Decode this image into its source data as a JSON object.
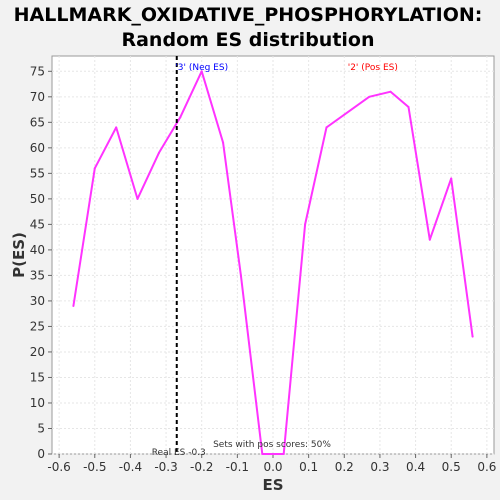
{
  "chart_data": {
    "type": "line",
    "title": "HALLMARK_OXIDATIVE_PHOSPHORYLATION:",
    "subtitle": "Random ES distribution",
    "xlabel": "ES",
    "ylabel": "P(ES)",
    "xlim": [
      -0.62,
      0.62
    ],
    "ylim": [
      0,
      78
    ],
    "x_ticks": [
      -0.6,
      -0.5,
      -0.4,
      -0.3,
      -0.2,
      -0.1,
      0.0,
      0.1,
      0.2,
      0.3,
      0.4,
      0.5,
      0.6
    ],
    "x_tick_labels": [
      "-0.6",
      "-0.5",
      "-0.4",
      "-0.3",
      "-0.2",
      "-0.1",
      "0.0",
      "0.1",
      "0.2",
      "0.3",
      "0.4",
      "0.5",
      "0.6"
    ],
    "y_ticks": [
      0,
      5,
      10,
      15,
      20,
      25,
      30,
      35,
      40,
      45,
      50,
      55,
      60,
      65,
      70,
      75
    ],
    "y_tick_labels": [
      "0",
      "5",
      "10",
      "15",
      "20",
      "25",
      "30",
      "35",
      "40",
      "45",
      "50",
      "55",
      "60",
      "65",
      "70",
      "75"
    ],
    "grid": true,
    "series": [
      {
        "color": "#ff33ff",
        "x": [
          -0.56,
          -0.5,
          -0.44,
          -0.38,
          -0.32,
          -0.26,
          -0.2,
          -0.14,
          -0.09,
          -0.03,
          0.03,
          0.09,
          0.15,
          0.27,
          0.33,
          0.38,
          0.44,
          0.5,
          0.56
        ],
        "y": [
          29,
          56,
          64,
          50,
          59,
          66,
          75,
          61,
          35,
          0,
          0,
          45,
          64,
          70,
          71,
          68,
          42,
          54,
          23
        ]
      }
    ],
    "real_es": {
      "value": -0.27,
      "label": "Real ES -0.3",
      "line_color": "#000000"
    },
    "annotations": {
      "neg_label": "'3' (Neg ES)",
      "neg_color": "#0000ff",
      "pos_label": "'2' (Pos ES)",
      "pos_color": "#ff0000",
      "pos_scores": "Sets with pos scores: 50%"
    }
  }
}
